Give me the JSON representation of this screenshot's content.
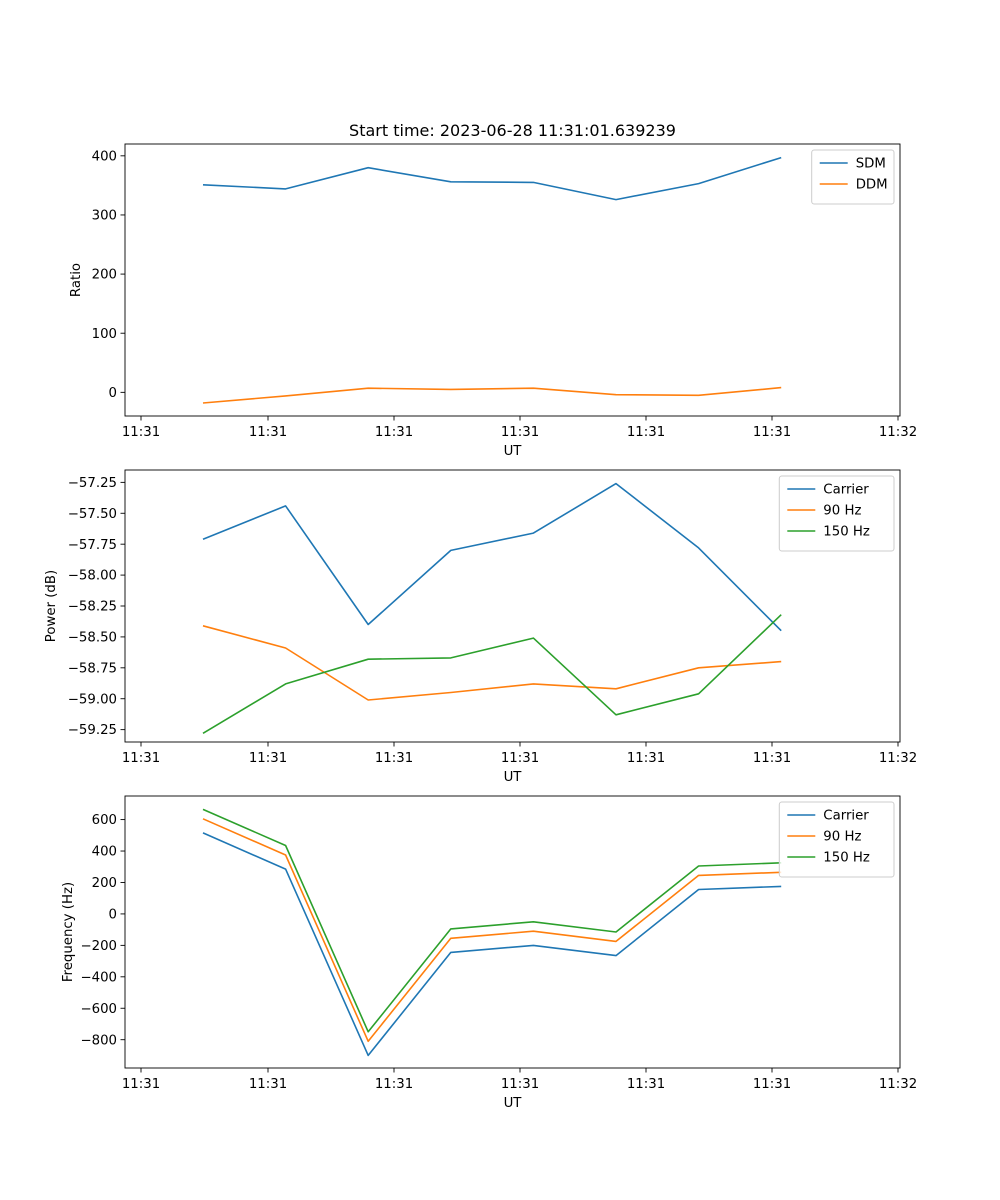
{
  "chart_data": [
    {
      "type": "line",
      "title": "Start time: 2023-06-28 11:31:01.639239",
      "xlabel": "UT",
      "ylabel": "Ratio",
      "x_tick_labels": [
        "11:31",
        "11:31",
        "11:31",
        "11:31",
        "11:31",
        "11:31",
        "11:32"
      ],
      "x_index": [
        0,
        1,
        2,
        3,
        4,
        5,
        6,
        7
      ],
      "ylim": [
        -40,
        420
      ],
      "yticks": [
        0,
        100,
        200,
        300,
        400
      ],
      "y_tick_labels": [
        "0",
        "100",
        "200",
        "300",
        "400"
      ],
      "legend_position": "upper-right",
      "series": [
        {
          "name": "SDM",
          "color": "#1f77b4",
          "values": [
            351,
            344,
            380,
            356,
            355,
            326,
            353,
            397
          ]
        },
        {
          "name": "DDM",
          "color": "#ff7f0e",
          "values": [
            -18,
            -6,
            7,
            5,
            7,
            -4,
            -5,
            8
          ]
        }
      ]
    },
    {
      "type": "line",
      "title": "",
      "xlabel": "UT",
      "ylabel": "Power (dB)",
      "x_tick_labels": [
        "11:31",
        "11:31",
        "11:31",
        "11:31",
        "11:31",
        "11:31",
        "11:32"
      ],
      "x_index": [
        0,
        1,
        2,
        3,
        4,
        5,
        6,
        7
      ],
      "ylim": [
        -59.35,
        -57.15
      ],
      "yticks": [
        -59.25,
        -59.0,
        -58.75,
        -58.5,
        -58.25,
        -58.0,
        -57.75,
        -57.5,
        -57.25
      ],
      "y_tick_labels": [
        "−59.25",
        "−59.00",
        "−58.75",
        "−58.50",
        "−58.25",
        "−58.00",
        "−57.75",
        "−57.50",
        "−57.25"
      ],
      "legend_position": "upper-right",
      "series": [
        {
          "name": "Carrier",
          "color": "#1f77b4",
          "values": [
            -57.71,
            -57.44,
            -58.4,
            -57.8,
            -57.66,
            -57.26,
            -57.78,
            -58.45
          ]
        },
        {
          "name": "90 Hz",
          "color": "#ff7f0e",
          "values": [
            -58.41,
            -58.59,
            -59.01,
            -58.95,
            -58.88,
            -58.92,
            -58.75,
            -58.7
          ]
        },
        {
          "name": "150 Hz",
          "color": "#2ca02c",
          "values": [
            -59.28,
            -58.88,
            -58.68,
            -58.67,
            -58.51,
            -59.13,
            -58.96,
            -58.32
          ]
        }
      ]
    },
    {
      "type": "line",
      "title": "",
      "xlabel": "UT",
      "ylabel": "Frequency (Hz)",
      "x_tick_labels": [
        "11:31",
        "11:31",
        "11:31",
        "11:31",
        "11:31",
        "11:31",
        "11:32"
      ],
      "x_index": [
        0,
        1,
        2,
        3,
        4,
        5,
        6,
        7
      ],
      "ylim": [
        -980,
        750
      ],
      "yticks": [
        -800,
        -600,
        -400,
        -200,
        0,
        200,
        400,
        600
      ],
      "y_tick_labels": [
        "−800",
        "−600",
        "−400",
        "−200",
        "0",
        "200",
        "400",
        "600"
      ],
      "legend_position": "upper-right",
      "series": [
        {
          "name": "Carrier",
          "color": "#1f77b4",
          "values": [
            515,
            285,
            -900,
            -245,
            -200,
            -265,
            155,
            175
          ]
        },
        {
          "name": "90 Hz",
          "color": "#ff7f0e",
          "values": [
            605,
            375,
            -810,
            -155,
            -110,
            -175,
            245,
            265
          ]
        },
        {
          "name": "150 Hz",
          "color": "#2ca02c",
          "values": [
            665,
            435,
            -750,
            -95,
            -50,
            -115,
            305,
            325
          ]
        }
      ]
    }
  ]
}
